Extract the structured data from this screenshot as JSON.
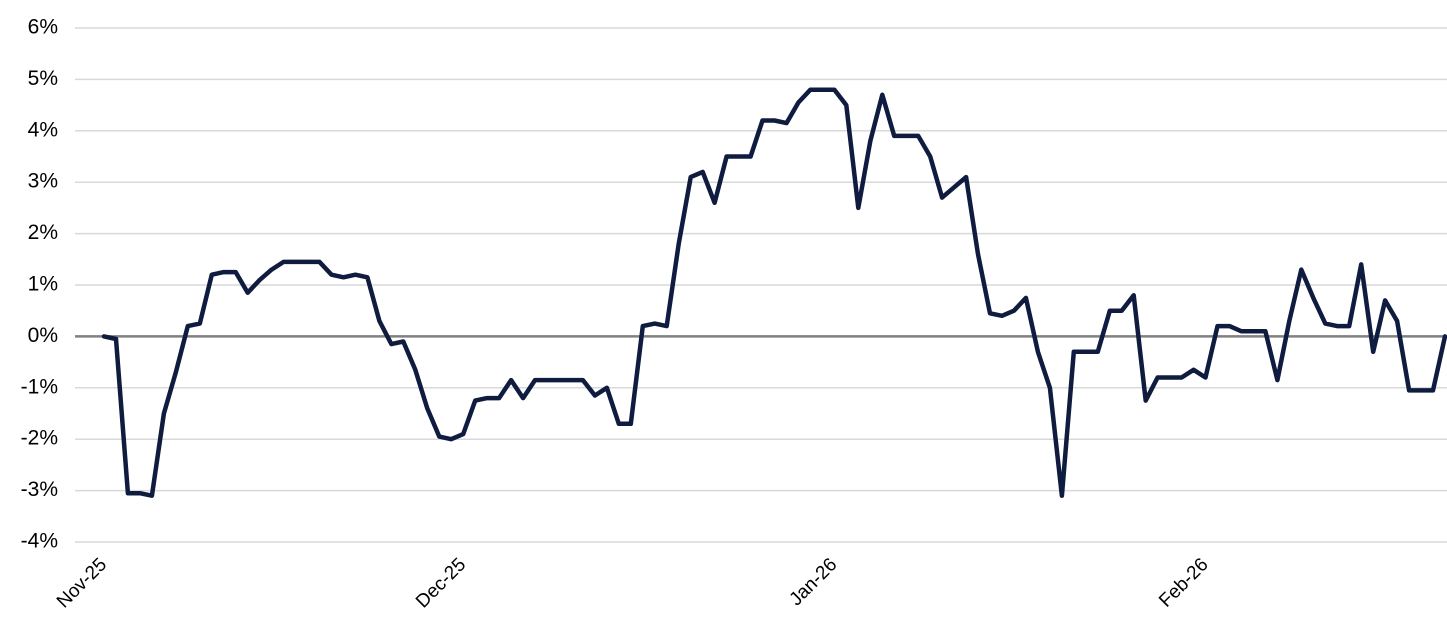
{
  "chart_data": {
    "type": "line",
    "color": "#0f1c3f",
    "grid": true,
    "categories": [
      "Nov-25",
      null,
      null,
      null,
      null,
      null,
      null,
      null,
      null,
      null,
      null,
      null,
      null,
      null,
      null,
      null,
      null,
      null,
      null,
      null,
      null,
      null,
      null,
      null,
      null,
      null,
      null,
      null,
      null,
      null,
      "Dec-25",
      null,
      null,
      null,
      null,
      null,
      null,
      null,
      null,
      null,
      null,
      null,
      null,
      null,
      null,
      null,
      null,
      null,
      null,
      null,
      null,
      null,
      null,
      null,
      null,
      null,
      null,
      null,
      null,
      null,
      null,
      "Jan-26",
      null,
      null,
      null,
      null,
      null,
      null,
      null,
      null,
      null,
      null,
      null,
      null,
      null,
      null,
      null,
      null,
      null,
      null,
      null,
      null,
      null,
      null,
      null,
      null,
      null,
      null,
      null,
      null,
      null,
      null,
      "Feb-26",
      null,
      null,
      null,
      null,
      null,
      null,
      null,
      null,
      null,
      null,
      null,
      null,
      null,
      null,
      null,
      null,
      null,
      null,
      null,
      null
    ],
    "values": [
      0,
      -0.05,
      -3.05,
      -3.05,
      -3.1,
      -1.5,
      -0.7,
      0.2,
      0.25,
      1.2,
      1.25,
      1.25,
      0.85,
      1.1,
      1.3,
      1.45,
      1.45,
      1.45,
      1.45,
      1.2,
      1.15,
      1.2,
      1.15,
      0.3,
      -0.15,
      -0.1,
      -0.65,
      -1.4,
      -1.95,
      -2.0,
      -1.9,
      -1.25,
      -1.2,
      -1.2,
      -0.85,
      -1.2,
      -0.85,
      -0.85,
      -0.85,
      -0.85,
      -0.85,
      -1.15,
      -1.0,
      -1.7,
      -1.7,
      0.2,
      0.25,
      0.2,
      1.8,
      3.1,
      3.2,
      2.6,
      3.5,
      3.5,
      3.5,
      4.2,
      4.2,
      4.15,
      4.55,
      4.8,
      4.8,
      4.8,
      4.5,
      2.5,
      3.8,
      4.7,
      3.9,
      3.9,
      3.9,
      3.5,
      2.7,
      2.9,
      3.1,
      1.6,
      0.45,
      0.4,
      0.5,
      0.75,
      -0.3,
      -1.0,
      -3.1,
      -0.3,
      -0.3,
      -0.3,
      0.5,
      0.5,
      0.8,
      -1.25,
      -0.8,
      -0.8,
      -0.8,
      -0.65,
      -0.8,
      0.2,
      0.2,
      0.1,
      0.1,
      0.1,
      -0.85,
      0.3,
      1.3,
      0.75,
      0.25,
      0.2,
      0.2,
      1.4,
      -0.3,
      0.7,
      0.3,
      -1.05,
      -1.05,
      -1.05,
      0
    ],
    "ylim": [
      -4,
      6
    ],
    "yticks": [
      {
        "value": -4,
        "label": "-4%"
      },
      {
        "value": -3,
        "label": "-3%"
      },
      {
        "value": -2,
        "label": "-2%"
      },
      {
        "value": -1,
        "label": "-1%"
      },
      {
        "value": 0,
        "label": "0%"
      },
      {
        "value": 1,
        "label": "1%"
      },
      {
        "value": 2,
        "label": "2%"
      },
      {
        "value": 3,
        "label": "3%"
      },
      {
        "value": 4,
        "label": "4%"
      },
      {
        "value": 5,
        "label": "5%"
      },
      {
        "value": 6,
        "label": "6%"
      }
    ]
  }
}
